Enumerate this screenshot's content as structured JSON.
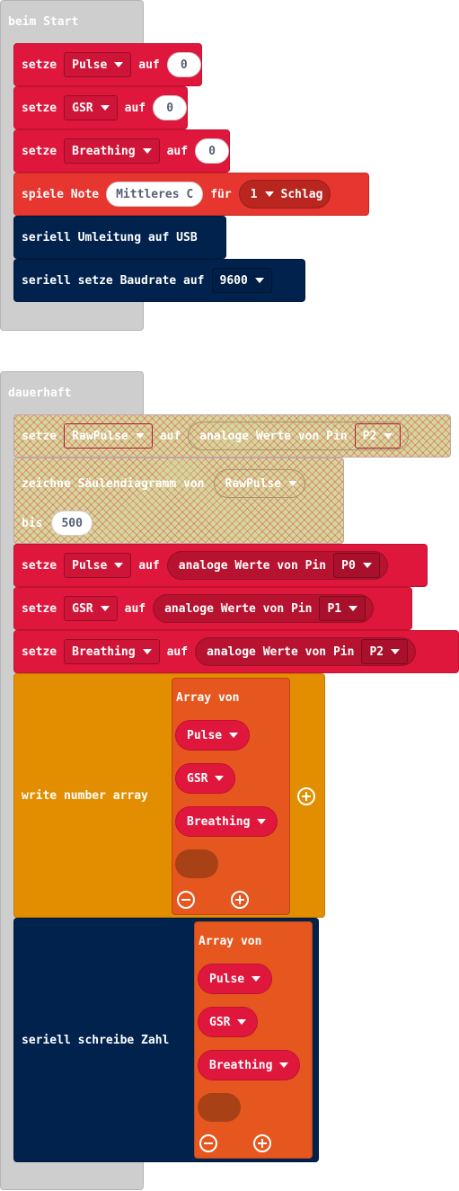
{
  "start_block": {
    "title": "beim Start",
    "set_word": "setze",
    "to_word": "auf",
    "pulse": {
      "var": "Pulse",
      "value": "0"
    },
    "gsr": {
      "var": "GSR",
      "value": "0"
    },
    "breathing": {
      "var": "Breathing",
      "value": "0"
    },
    "play_note": {
      "label": "spiele Note",
      "note": "Mittleres C",
      "for": "für",
      "beats": "1",
      "unit": "Schlag"
    },
    "serial_redirect": "seriell Umleitung auf USB",
    "baud": {
      "label": "seriell setze Baudrate auf",
      "value": "9600"
    }
  },
  "forever_block": {
    "title": "dauerhaft",
    "set_word": "setze",
    "to_word": "auf",
    "analog_read": "analoge Werte von Pin",
    "rawpulse": {
      "var": "RawPulse",
      "pin": "P2"
    },
    "bargraph": {
      "label": "zeichne Säulendiagramm von",
      "var": "RawPulse",
      "up_to": "bis",
      "max": "500"
    },
    "pulse": {
      "var": "Pulse",
      "pin": "P0"
    },
    "gsr": {
      "var": "GSR",
      "pin": "P1"
    },
    "breathing": {
      "var": "Breathing",
      "pin": "P2"
    },
    "write_array": {
      "label": "write number array",
      "array_title": "Array von",
      "items": [
        "Pulse",
        "GSR",
        "Breathing"
      ]
    },
    "serial_write": {
      "label": "seriell schreibe Zahl",
      "array_title": "Array von",
      "items": [
        "Pulse",
        "GSR",
        "Breathing"
      ]
    }
  },
  "colors": {
    "hat": "#cecece",
    "variables": "#e0173d",
    "music": "#e7362f",
    "serial": "#00224d",
    "custom": "#e38e00",
    "arrays": "#e6561f",
    "led": "#d5d79a"
  }
}
